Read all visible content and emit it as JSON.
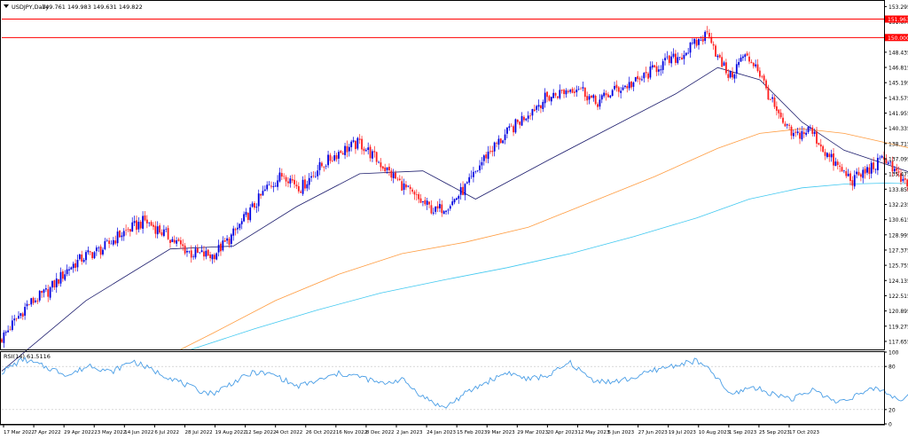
{
  "chart_data": {
    "type": "candlestick",
    "symbol_label": "USDJPY,Daily",
    "ohlc_label": "149.761 149.983 149.631 149.822",
    "price_axis_ticks": [
      "153.295",
      "151.675",
      "150.055",
      "148.435",
      "146.815",
      "145.195",
      "143.575",
      "141.955",
      "140.335",
      "138.715",
      "137.095",
      "135.475",
      "133.855",
      "132.235",
      "130.615",
      "128.995",
      "127.375",
      "125.755",
      "124.135",
      "122.515",
      "120.895",
      "119.275",
      "117.655"
    ],
    "price_range": [
      116.8,
      153.9
    ],
    "h_lines": [
      {
        "value": 151.963,
        "label": "151.963",
        "color": "#ff0000"
      },
      {
        "value": 150.0,
        "label": "150.000",
        "color": "#ff0000"
      }
    ],
    "x_tick_labels": [
      "17 Mar 2022",
      "7 Apr 2022",
      "29 Apr 2022",
      "23 May 2022",
      "14 Jun 2022",
      "6 Jul 2022",
      "28 Jul 2022",
      "19 Aug 2022",
      "12 Sep 2022",
      "4 Oct 2022",
      "26 Oct 2022",
      "16 Nov 2022",
      "8 Dec 2022",
      "2 Jan 2023",
      "24 Jan 2023",
      "15 Feb 2023",
      "9 Mar 2023",
      "29 Mar 2023",
      "20 Apr 2023",
      "12 May 2023",
      "5 Jun 2023",
      "27 Jun 2023",
      "19 Jul 2023",
      "10 Aug 2023",
      "1 Sep 2023",
      "25 Sep 2023",
      "17 Oct 2023"
    ],
    "bar_count": 420,
    "price_path": [
      [
        0,
        118.0
      ],
      [
        12,
        121.5
      ],
      [
        22,
        123.0
      ],
      [
        32,
        125.5
      ],
      [
        40,
        126.8
      ],
      [
        48,
        127.5
      ],
      [
        56,
        129.0
      ],
      [
        68,
        130.5
      ],
      [
        78,
        129.0
      ],
      [
        90,
        127.0
      ],
      [
        100,
        126.8
      ],
      [
        108,
        128.5
      ],
      [
        118,
        131.5
      ],
      [
        126,
        134.0
      ],
      [
        134,
        135.5
      ],
      [
        142,
        134.0
      ],
      [
        150,
        136.0
      ],
      [
        160,
        137.8
      ],
      [
        170,
        138.8
      ],
      [
        178,
        137.0
      ],
      [
        186,
        135.2
      ],
      [
        196,
        133.0
      ],
      [
        206,
        131.5
      ],
      [
        214,
        132.5
      ],
      [
        222,
        134.5
      ],
      [
        230,
        137.5
      ],
      [
        240,
        139.8
      ],
      [
        250,
        142.0
      ],
      [
        258,
        143.5
      ],
      [
        266,
        144.2
      ],
      [
        274,
        144.8
      ],
      [
        282,
        143.0
      ],
      [
        292,
        144.5
      ],
      [
        302,
        145.3
      ],
      [
        312,
        147.0
      ],
      [
        322,
        148.0
      ],
      [
        332,
        149.8
      ],
      [
        336,
        150.6
      ],
      [
        340,
        147.8
      ],
      [
        346,
        145.8
      ],
      [
        352,
        148.0
      ],
      [
        358,
        147.2
      ],
      [
        364,
        144.0
      ],
      [
        370,
        141.0
      ],
      [
        376,
        139.5
      ],
      [
        384,
        140.2
      ],
      [
        392,
        137.5
      ],
      [
        398,
        136.0
      ],
      [
        404,
        134.8
      ],
      [
        412,
        136.0
      ],
      [
        420,
        137.2
      ],
      [
        428,
        134.5
      ],
      [
        436,
        132.5
      ],
      [
        444,
        131.5
      ],
      [
        452,
        133.5
      ],
      [
        460,
        131.5
      ],
      [
        468,
        128.5
      ],
      [
        476,
        129.5
      ],
      [
        484,
        130.2
      ],
      [
        490,
        129.0
      ],
      [
        498,
        130.5
      ],
      [
        506,
        132.5
      ],
      [
        512,
        134.5
      ],
      [
        520,
        135.5
      ],
      [
        528,
        134.8
      ],
      [
        536,
        136.0
      ],
      [
        544,
        137.2
      ],
      [
        552,
        136.0
      ],
      [
        560,
        134.0
      ],
      [
        566,
        132.0
      ],
      [
        574,
        131.2
      ],
      [
        580,
        133.0
      ],
      [
        588,
        131.8
      ],
      [
        596,
        133.0
      ],
      [
        604,
        134.0
      ],
      [
        612,
        133.8
      ],
      [
        620,
        134.8
      ],
      [
        628,
        133.5
      ],
      [
        636,
        136.5
      ],
      [
        644,
        134.5
      ],
      [
        652,
        134.0
      ],
      [
        660,
        135.5
      ],
      [
        668,
        138.0
      ],
      [
        676,
        140.0
      ],
      [
        684,
        139.0
      ],
      [
        692,
        138.5
      ],
      [
        700,
        139.5
      ],
      [
        708,
        141.5
      ],
      [
        716,
        143.0
      ],
      [
        724,
        144.5
      ],
      [
        730,
        144.8
      ],
      [
        736,
        143.0
      ],
      [
        742,
        140.5
      ],
      [
        748,
        138.0
      ],
      [
        754,
        139.2
      ],
      [
        762,
        140.5
      ],
      [
        770,
        139.0
      ],
      [
        778,
        141.5
      ],
      [
        786,
        143.5
      ],
      [
        794,
        144.5
      ],
      [
        802,
        145.3
      ],
      [
        810,
        145.0
      ],
      [
        818,
        145.8
      ],
      [
        826,
        146.5
      ],
      [
        834,
        146.2
      ],
      [
        842,
        147.0
      ],
      [
        850,
        147.5
      ],
      [
        858,
        148.0
      ],
      [
        866,
        149.6
      ],
      [
        874,
        148.5
      ],
      [
        880,
        149.2
      ],
      [
        886,
        149.5
      ],
      [
        892,
        149.4
      ],
      [
        897,
        149.8
      ]
    ],
    "indicator": {
      "label": "RSI(14) 61.5116",
      "range": [
        0,
        100
      ],
      "ticks": [
        "100",
        "80",
        "20",
        "0"
      ],
      "levels": [
        80,
        20
      ],
      "path": [
        [
          0,
          72
        ],
        [
          10,
          90
        ],
        [
          22,
          78
        ],
        [
          32,
          68
        ],
        [
          42,
          82
        ],
        [
          52,
          72
        ],
        [
          62,
          88
        ],
        [
          72,
          74
        ],
        [
          82,
          62
        ],
        [
          92,
          48
        ],
        [
          100,
          42
        ],
        [
          110,
          58
        ],
        [
          120,
          72
        ],
        [
          130,
          68
        ],
        [
          140,
          52
        ],
        [
          150,
          60
        ],
        [
          160,
          70
        ],
        [
          170,
          66
        ],
        [
          180,
          56
        ],
        [
          190,
          62
        ],
        [
          200,
          38
        ],
        [
          210,
          22
        ],
        [
          220,
          42
        ],
        [
          230,
          58
        ],
        [
          240,
          72
        ],
        [
          250,
          62
        ],
        [
          260,
          68
        ],
        [
          270,
          85
        ],
        [
          280,
          62
        ],
        [
          290,
          58
        ],
        [
          300,
          64
        ],
        [
          310,
          75
        ],
        [
          320,
          82
        ],
        [
          330,
          88
        ],
        [
          338,
          70
        ],
        [
          346,
          40
        ],
        [
          356,
          52
        ],
        [
          366,
          42
        ],
        [
          376,
          35
        ],
        [
          386,
          48
        ],
        [
          396,
          30
        ],
        [
          406,
          40
        ],
        [
          416,
          50
        ],
        [
          426,
          34
        ],
        [
          436,
          45
        ],
        [
          446,
          34
        ],
        [
          456,
          44
        ],
        [
          466,
          36
        ],
        [
          476,
          50
        ],
        [
          486,
          45
        ],
        [
          496,
          62
        ],
        [
          506,
          72
        ],
        [
          516,
          65
        ],
        [
          526,
          72
        ],
        [
          536,
          68
        ],
        [
          546,
          62
        ],
        [
          556,
          40
        ],
        [
          566,
          42
        ],
        [
          576,
          48
        ],
        [
          586,
          42
        ],
        [
          596,
          50
        ],
        [
          606,
          62
        ],
        [
          616,
          58
        ],
        [
          626,
          70
        ],
        [
          636,
          56
        ],
        [
          646,
          64
        ],
        [
          656,
          70
        ],
        [
          666,
          72
        ],
        [
          676,
          62
        ],
        [
          686,
          70
        ],
        [
          696,
          58
        ],
        [
          706,
          68
        ],
        [
          716,
          72
        ],
        [
          726,
          75
        ],
        [
          734,
          60
        ],
        [
          740,
          28
        ],
        [
          746,
          22
        ],
        [
          752,
          30
        ],
        [
          760,
          50
        ],
        [
          770,
          46
        ],
        [
          780,
          58
        ],
        [
          790,
          68
        ],
        [
          800,
          72
        ],
        [
          810,
          64
        ],
        [
          820,
          58
        ],
        [
          830,
          68
        ],
        [
          840,
          60
        ],
        [
          850,
          64
        ],
        [
          860,
          56
        ],
        [
          866,
          76
        ],
        [
          872,
          58
        ],
        [
          880,
          50
        ],
        [
          888,
          62
        ],
        [
          897,
          60
        ]
      ]
    },
    "moving_averages": [
      {
        "color": "#1e1e6e",
        "points": [
          [
            0,
            114.5
          ],
          [
            40,
            122.0
          ],
          [
            80,
            127.5
          ],
          [
            110,
            127.8
          ],
          [
            140,
            132.0
          ],
          [
            170,
            135.5
          ],
          [
            200,
            135.8
          ],
          [
            225,
            132.8
          ],
          [
            260,
            137.0
          ],
          [
            290,
            140.5
          ],
          [
            320,
            144.0
          ],
          [
            340,
            146.8
          ],
          [
            360,
            145.5
          ],
          [
            380,
            141.0
          ],
          [
            400,
            138.0
          ],
          [
            420,
            136.5
          ],
          [
            440,
            135.0
          ],
          [
            460,
            132.0
          ],
          [
            480,
            130.0
          ],
          [
            500,
            130.5
          ],
          [
            520,
            133.0
          ],
          [
            540,
            135.5
          ],
          [
            560,
            134.0
          ],
          [
            580,
            132.5
          ],
          [
            600,
            132.8
          ],
          [
            620,
            133.5
          ],
          [
            640,
            134.2
          ],
          [
            660,
            135.0
          ],
          [
            680,
            137.0
          ],
          [
            700,
            139.0
          ],
          [
            720,
            141.5
          ],
          [
            735,
            142.5
          ],
          [
            750,
            140.5
          ],
          [
            770,
            139.0
          ],
          [
            790,
            141.5
          ],
          [
            810,
            143.5
          ],
          [
            830,
            145.0
          ],
          [
            850,
            146.5
          ],
          [
            870,
            147.8
          ],
          [
            897,
            148.8
          ]
        ]
      },
      {
        "color": "#ff9c40",
        "points": [
          [
            85,
            116.8
          ],
          [
            100,
            118.5
          ],
          [
            130,
            122.0
          ],
          [
            160,
            124.8
          ],
          [
            190,
            127.0
          ],
          [
            220,
            128.2
          ],
          [
            250,
            129.8
          ],
          [
            280,
            132.5
          ],
          [
            310,
            135.2
          ],
          [
            340,
            138.2
          ],
          [
            360,
            139.8
          ],
          [
            380,
            140.3
          ],
          [
            400,
            139.8
          ],
          [
            420,
            138.8
          ],
          [
            440,
            137.8
          ],
          [
            460,
            136.8
          ],
          [
            480,
            135.8
          ],
          [
            500,
            135.0
          ],
          [
            520,
            134.6
          ],
          [
            540,
            134.6
          ],
          [
            560,
            134.5
          ],
          [
            580,
            134.0
          ],
          [
            600,
            133.8
          ],
          [
            620,
            133.8
          ],
          [
            640,
            134.0
          ],
          [
            660,
            134.3
          ],
          [
            680,
            134.8
          ],
          [
            700,
            135.3
          ],
          [
            720,
            136.0
          ],
          [
            740,
            137.2
          ],
          [
            760,
            138.2
          ],
          [
            780,
            139.2
          ],
          [
            800,
            140.5
          ],
          [
            820,
            141.6
          ],
          [
            840,
            142.6
          ],
          [
            860,
            143.7
          ],
          [
            880,
            144.6
          ],
          [
            897,
            145.4
          ]
        ]
      },
      {
        "color": "#40c8f0",
        "points": [
          [
            90,
            116.8
          ],
          [
            120,
            119.0
          ],
          [
            150,
            121.0
          ],
          [
            180,
            122.8
          ],
          [
            210,
            124.2
          ],
          [
            240,
            125.5
          ],
          [
            270,
            127.0
          ],
          [
            300,
            128.8
          ],
          [
            330,
            130.8
          ],
          [
            355,
            132.8
          ],
          [
            380,
            134.0
          ],
          [
            400,
            134.4
          ],
          [
            420,
            134.5
          ],
          [
            440,
            134.4
          ],
          [
            460,
            134.2
          ],
          [
            480,
            134.0
          ],
          [
            500,
            133.9
          ],
          [
            520,
            133.8
          ],
          [
            540,
            133.8
          ],
          [
            560,
            133.7
          ],
          [
            580,
            133.7
          ],
          [
            600,
            133.6
          ],
          [
            620,
            133.6
          ],
          [
            640,
            133.7
          ],
          [
            660,
            133.9
          ],
          [
            680,
            134.2
          ],
          [
            700,
            134.6
          ],
          [
            720,
            135.1
          ],
          [
            740,
            135.7
          ],
          [
            760,
            136.2
          ],
          [
            780,
            136.8
          ],
          [
            800,
            137.5
          ],
          [
            820,
            138.2
          ],
          [
            840,
            138.9
          ],
          [
            860,
            139.7
          ],
          [
            880,
            140.5
          ],
          [
            897,
            141.2
          ]
        ]
      }
    ],
    "colors": {
      "up": "#0000e0",
      "down": "#ff1e1e",
      "rsi": "#4a9ee6",
      "grid": "#d0d0d0",
      "axis": "#000000"
    },
    "grid": false
  }
}
